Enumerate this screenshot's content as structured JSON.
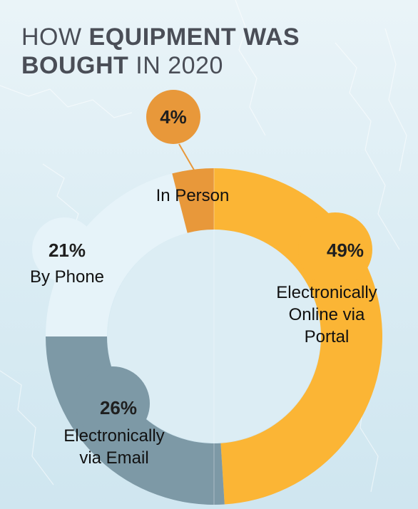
{
  "title": {
    "part1": "HOW ",
    "part2": "EQUIPMENT WAS",
    "part3": "BOUGHT",
    "part4": " IN 2020"
  },
  "chart_data": {
    "type": "pie",
    "title": "HOW EQUIPMENT WAS BOUGHT IN 2020",
    "slices": [
      {
        "label": "Electronically Online via Portal",
        "lines": [
          "Electronically",
          "Online via",
          "Portal"
        ],
        "value": 49,
        "display": "49%",
        "color": "#fbb535"
      },
      {
        "label": "Electronically via Email",
        "lines": [
          "Electronically",
          "via Email"
        ],
        "value": 26,
        "display": "26%",
        "color": "#7d99a6"
      },
      {
        "label": "By Phone",
        "lines": [
          "By Phone"
        ],
        "value": 21,
        "display": "21%",
        "color": "#e6f3f9"
      },
      {
        "label": "In Person",
        "lines": [
          "In Person"
        ],
        "value": 4,
        "display": "4%",
        "color": "#e8983a"
      }
    ],
    "colors": {
      "text": "#1f1f1f",
      "title": "#4a4e57",
      "callout_bubble": "#e8983a",
      "center_hole": "#dcedf4"
    }
  }
}
